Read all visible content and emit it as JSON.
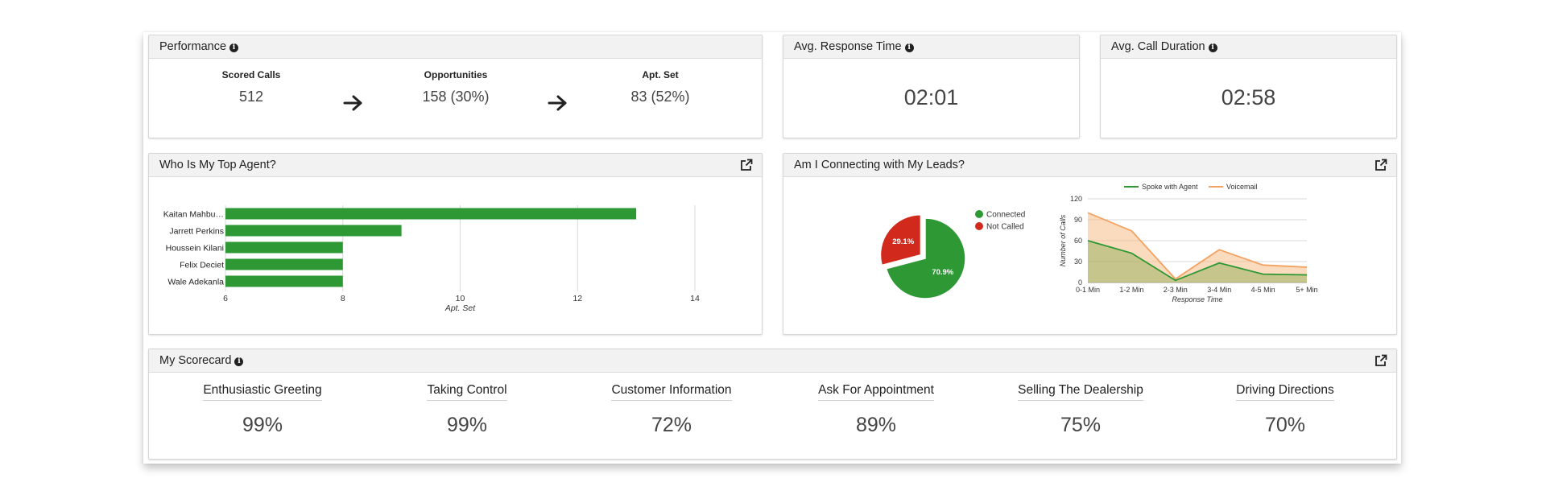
{
  "performance": {
    "title": "Performance",
    "steps": [
      {
        "label": "Scored Calls",
        "value": "512"
      },
      {
        "label": "Opportunities",
        "value": "158 (30%)"
      },
      {
        "label": "Apt. Set",
        "value": "83 (52%)"
      }
    ]
  },
  "avg_response": {
    "title": "Avg. Response Time",
    "value": "02:01"
  },
  "avg_duration": {
    "title": "Avg. Call Duration",
    "value": "02:58"
  },
  "top_agent": {
    "title": "Who Is My Top Agent?"
  },
  "connecting": {
    "title": "Am I Connecting with My Leads?"
  },
  "scorecard": {
    "title": "My Scorecard",
    "items": [
      {
        "label": "Enthusiastic Greeting",
        "value": "99%"
      },
      {
        "label": "Taking Control",
        "value": "99%"
      },
      {
        "label": "Customer Information",
        "value": "72%"
      },
      {
        "label": "Ask For Appointment",
        "value": "89%"
      },
      {
        "label": "Selling The Dealership",
        "value": "75%"
      },
      {
        "label": "Driving Directions",
        "value": "70%"
      }
    ]
  },
  "colors": {
    "green": "#2e9934",
    "red": "#d12a1d",
    "orange": "#f4a261",
    "grid": "#d9d9d9"
  },
  "icons": {
    "info": "info-icon",
    "external": "external-link-icon",
    "arrow": "arrow-right-icon"
  },
  "chart_data": [
    {
      "type": "bar",
      "orientation": "horizontal",
      "categories": [
        "Kaitan Mahbu…",
        "Jarrett Perkins",
        "Houssein Kilani",
        "Felix Deciet",
        "Wale Adekanla"
      ],
      "values": [
        13,
        9,
        8,
        8,
        8
      ],
      "xlabel": "Apt. Set",
      "xlim": [
        6,
        14
      ],
      "xticks": [
        "6",
        "8",
        "10",
        "12",
        "14"
      ],
      "grid": true
    },
    {
      "type": "pie",
      "labels": [
        "Connected",
        "Not Called"
      ],
      "values": [
        70.9,
        29.1
      ],
      "slice_labels": [
        "70.9%",
        "29.1%"
      ],
      "legend": "right"
    },
    {
      "type": "area",
      "categories": [
        "0-1 Min",
        "1-2 Min",
        "2-3 Min",
        "3-4 Min",
        "4-5 Min",
        "5+ Min"
      ],
      "series": [
        {
          "name": "Spoke with Agent",
          "values": [
            60,
            42,
            3,
            28,
            12,
            11
          ]
        },
        {
          "name": "Voicemail",
          "values": [
            100,
            74,
            5,
            47,
            25,
            22
          ]
        }
      ],
      "xlabel": "Response Time",
      "ylabel": "Number of Calls",
      "ylim": [
        0,
        120
      ],
      "yticks": [
        "0",
        "30",
        "60",
        "90",
        "120"
      ],
      "legend": "top"
    }
  ]
}
